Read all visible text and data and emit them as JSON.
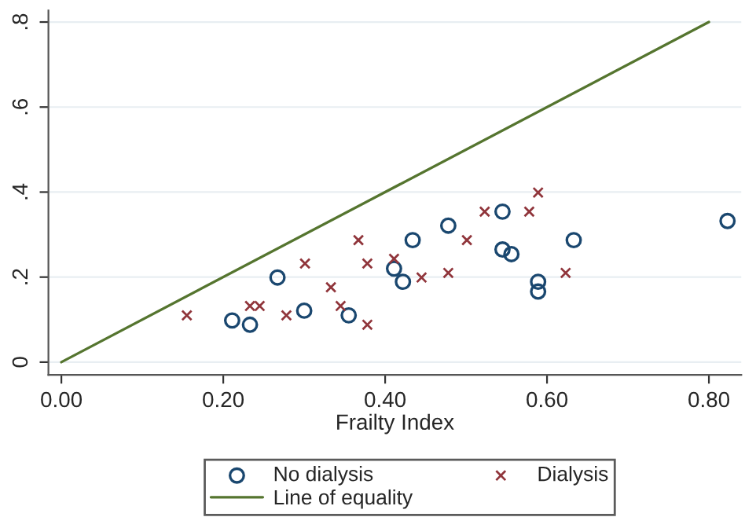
{
  "chart_data": {
    "type": "scatter",
    "xlabel": "Frailty Index",
    "xlim": [
      -0.016,
      0.84
    ],
    "ylim": [
      -0.03,
      0.827
    ],
    "xticks": [
      {
        "value": 0,
        "label": "0.00"
      },
      {
        "value": 0.2,
        "label": "0.20"
      },
      {
        "value": 0.4,
        "label": "0.40"
      },
      {
        "value": 0.6,
        "label": "0.60"
      },
      {
        "value": 0.8,
        "label": "0.80"
      }
    ],
    "yticks": [
      0,
      {
        "value": 0.2,
        "label": ".2"
      },
      {
        "value": 0.4,
        "label": ".4"
      },
      {
        "value": 0.6,
        "label": ".6"
      },
      {
        "value": 0.8,
        "label": ".8"
      }
    ],
    "grid": "y",
    "legend": "bottom",
    "series": [
      {
        "name": "No dialysis",
        "color": "#1a476f",
        "marker": "circle",
        "x": [
          0.211,
          0.233,
          0.267,
          0.3,
          0.355,
          0.411,
          0.422,
          0.434,
          0.478,
          0.545,
          0.545,
          0.556,
          0.589,
          0.589,
          0.633,
          0.823
        ],
        "values": [
          0.098,
          0.088,
          0.199,
          0.121,
          0.11,
          0.22,
          0.189,
          0.287,
          0.321,
          0.354,
          0.265,
          0.254,
          0.189,
          0.166,
          0.287,
          0.332
        ]
      },
      {
        "name": "Dialysis",
        "color": "#90353b",
        "marker": "cross",
        "x": [
          0.155,
          0.233,
          0.245,
          0.278,
          0.301,
          0.333,
          0.345,
          0.367,
          0.378,
          0.378,
          0.411,
          0.445,
          0.478,
          0.501,
          0.523,
          0.578,
          0.589,
          0.623
        ],
        "values": [
          0.11,
          0.132,
          0.132,
          0.11,
          0.232,
          0.176,
          0.132,
          0.287,
          0.232,
          0.088,
          0.243,
          0.199,
          0.21,
          0.287,
          0.354,
          0.354,
          0.399,
          0.21
        ]
      },
      {
        "name": "Line of equality",
        "type": "line",
        "color": "#55752f",
        "marker": "none",
        "x": [
          0,
          0.8
        ],
        "values": [
          0,
          0.8
        ]
      }
    ]
  }
}
